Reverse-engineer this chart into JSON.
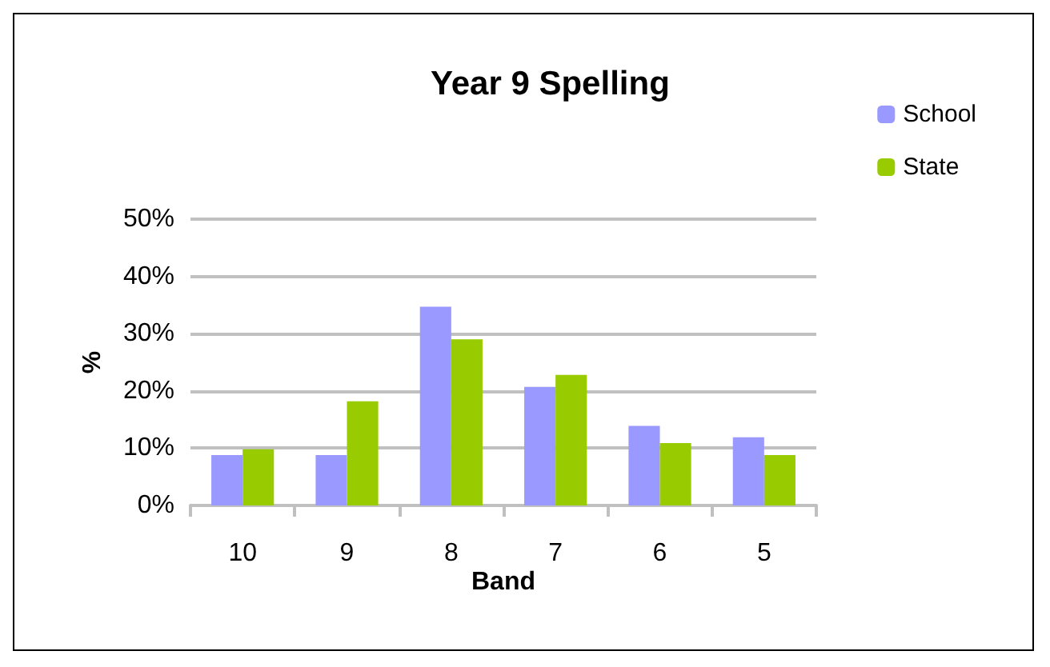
{
  "chart_data": {
    "type": "bar",
    "title": "Year 9 Spelling",
    "xlabel": "Band",
    "ylabel": "%",
    "categories": [
      "10",
      "9",
      "8",
      "7",
      "6",
      "5"
    ],
    "series": [
      {
        "name": "School",
        "color": "#9999ff",
        "values": [
          8.8,
          8.8,
          34.7,
          20.7,
          13.9,
          11.9
        ]
      },
      {
        "name": "State",
        "color": "#99cc00",
        "values": [
          9.8,
          18.2,
          29.0,
          22.8,
          10.9,
          8.8
        ]
      }
    ],
    "ylim": [
      0,
      50
    ],
    "yticks": [
      {
        "value": 0,
        "label": "0%"
      },
      {
        "value": 10,
        "label": "10%"
      },
      {
        "value": 20,
        "label": "20%"
      },
      {
        "value": 30,
        "label": "30%"
      },
      {
        "value": 40,
        "label": "40%"
      },
      {
        "value": 50,
        "label": "50%"
      }
    ],
    "grid": "y",
    "legend": "top right"
  }
}
